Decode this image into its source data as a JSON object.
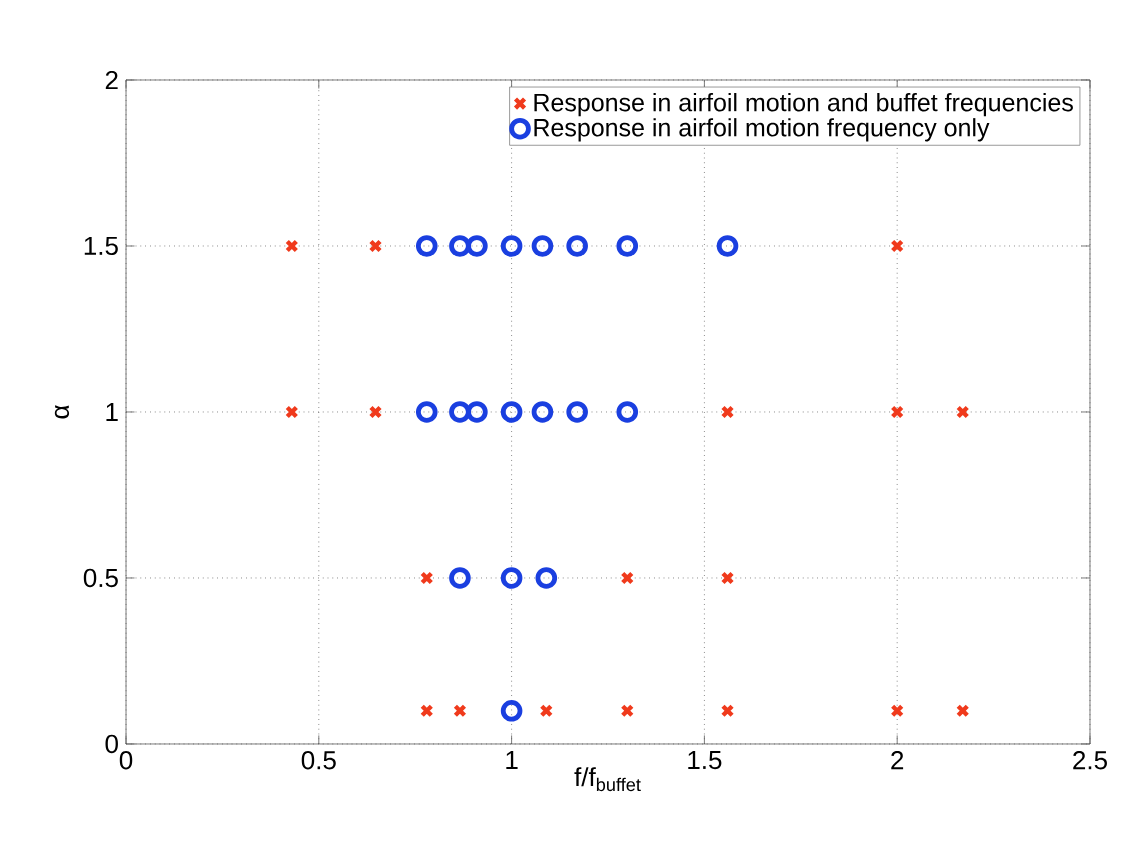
{
  "chart_data": {
    "type": "scatter",
    "xlabel": "f/f$_{buffet}$",
    "ylabel": "α",
    "xlim": [
      0,
      2.5
    ],
    "ylim": [
      0,
      2
    ],
    "xticks": [
      0,
      0.5,
      1,
      1.5,
      2,
      2.5
    ],
    "yticks": [
      0,
      0.5,
      1,
      1.5,
      2
    ],
    "grid": true,
    "legend": "top right",
    "series": [
      {
        "name": "Response in airfoil motion and buffet frequencies",
        "color": "#f03a1c",
        "marker": "cross",
        "x": [
          0.43,
          0.647,
          2.0,
          0.43,
          0.647,
          1.56,
          2.0,
          2.17,
          0.78,
          1.3,
          1.56,
          0.78,
          0.866,
          1.09,
          1.3,
          1.56,
          2.0,
          2.17
        ],
        "values": [
          1.5,
          1.5,
          1.5,
          1,
          1,
          1,
          1,
          1,
          0.5,
          0.5,
          0.5,
          0.1,
          0.1,
          0.1,
          0.1,
          0.1,
          0.1,
          0.1
        ]
      },
      {
        "name": "Response in airfoil motion frequency only",
        "color": "#1a3fe0",
        "marker": "circle",
        "x": [
          0.78,
          0.866,
          0.91,
          1.0,
          1.08,
          1.17,
          1.3,
          1.56,
          0.78,
          0.866,
          0.91,
          1.0,
          1.08,
          1.17,
          1.3,
          0.866,
          1.0,
          1.09,
          1.0
        ],
        "values": [
          1.5,
          1.5,
          1.5,
          1.5,
          1.5,
          1.5,
          1.5,
          1.5,
          1,
          1,
          1,
          1,
          1,
          1,
          1,
          0.5,
          0.5,
          0.5,
          0.1
        ]
      }
    ]
  }
}
